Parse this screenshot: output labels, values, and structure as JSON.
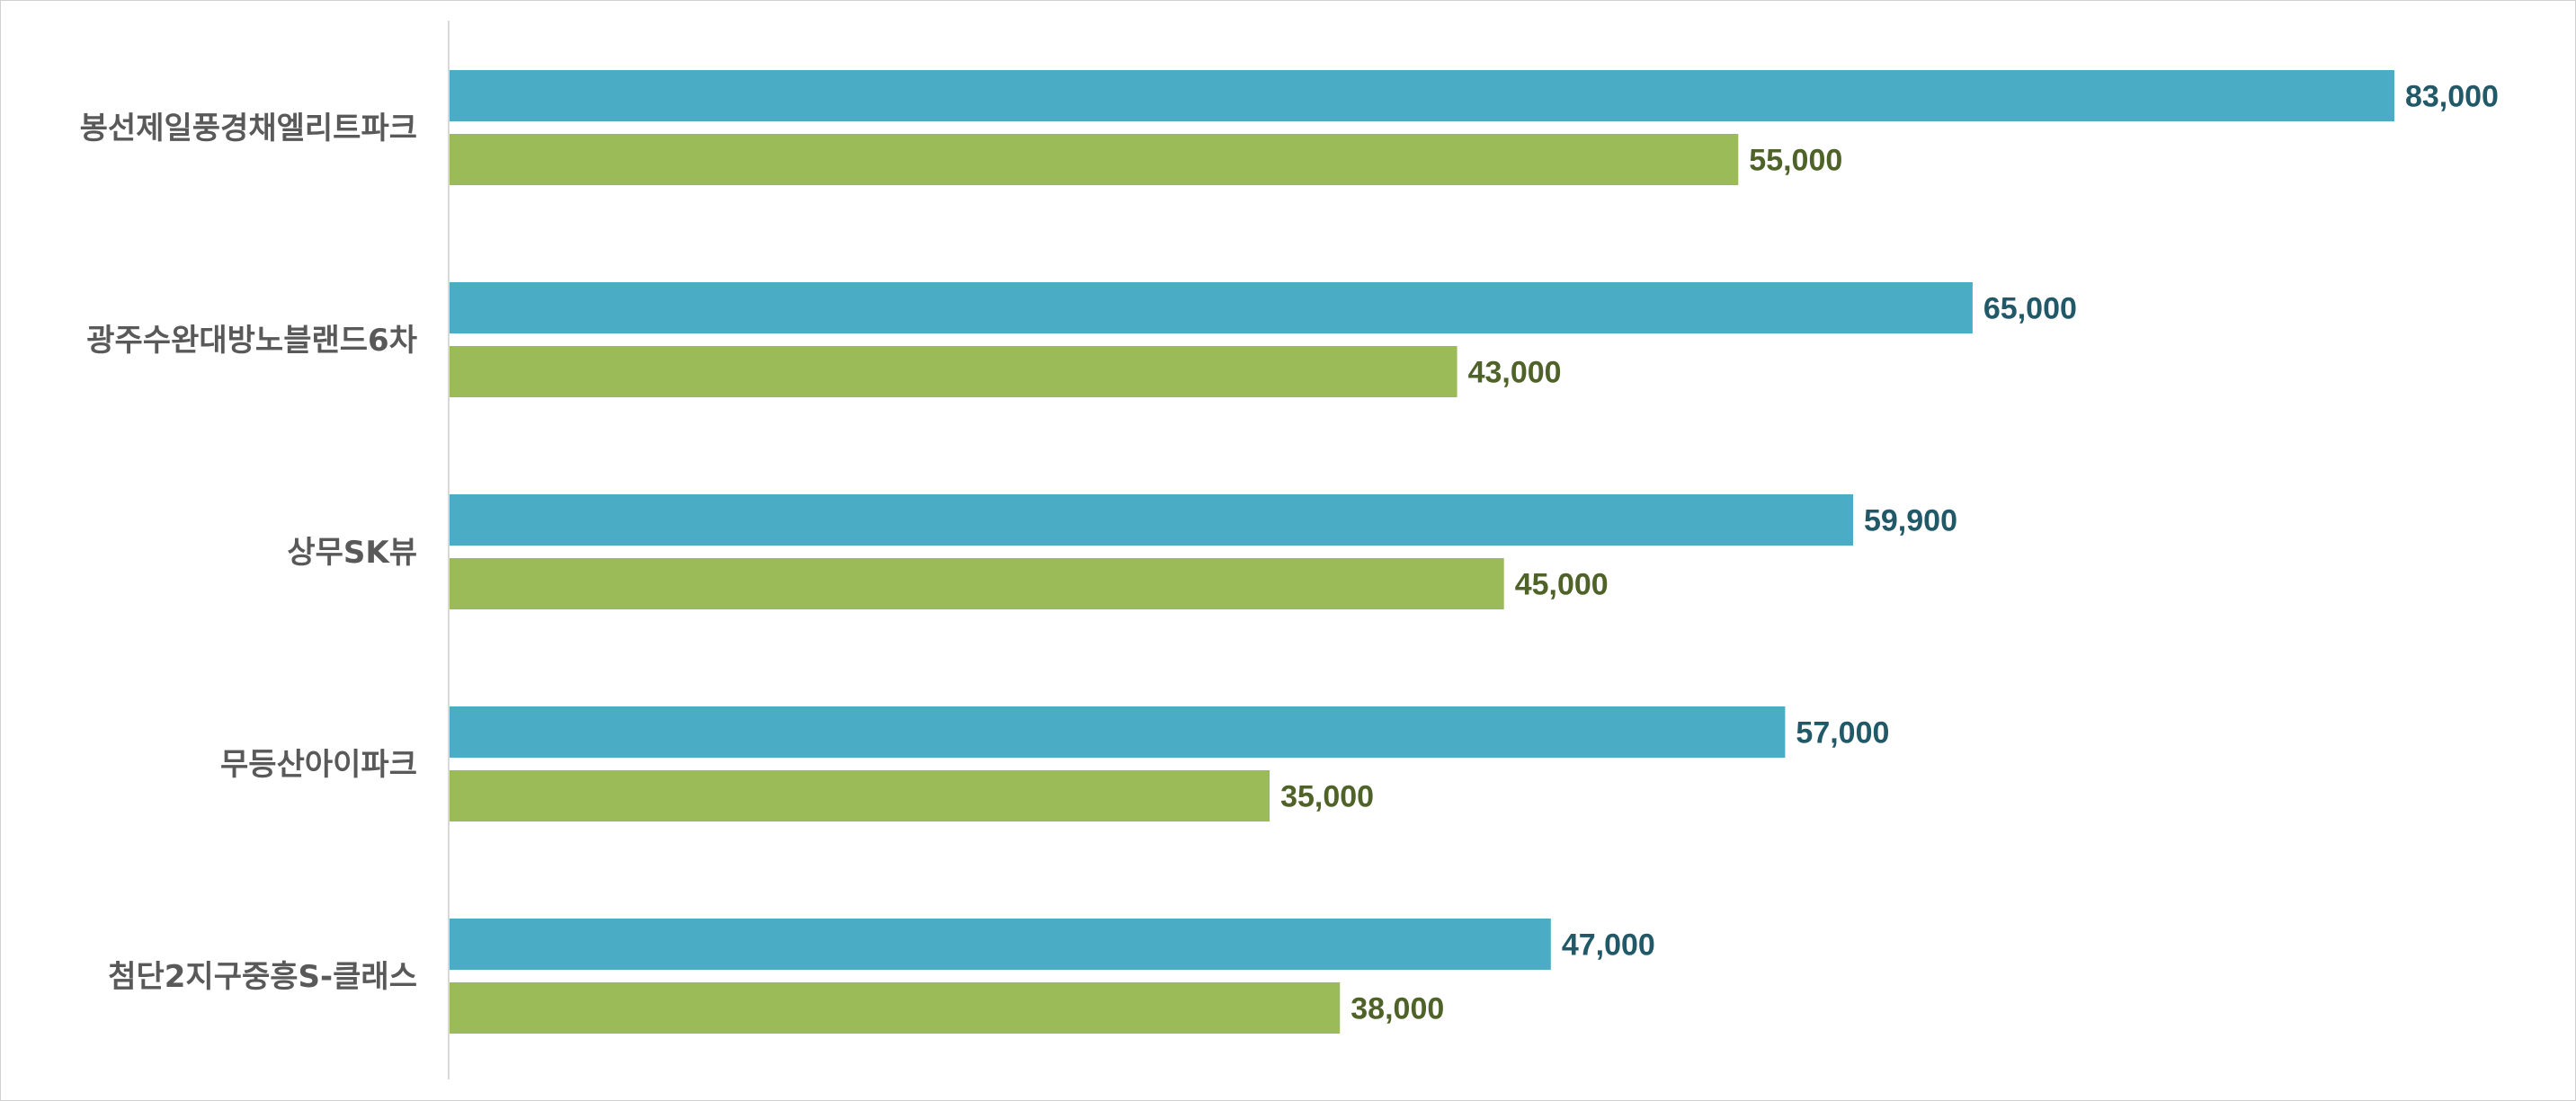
{
  "colors": {
    "series1_bar": "#4BACC6",
    "series2_bar": "#9BBB59",
    "series1_label": "#215968",
    "series2_label": "#4F6228",
    "axis": "#d9d9d9",
    "category_text": "#595959"
  },
  "chart_data": {
    "type": "bar",
    "orientation": "horizontal",
    "categories": [
      "봉선제일풍경채엘리트파크",
      "광주수완대방노블랜드6차",
      "상무SK뷰",
      "무등산아이파크",
      "첨단2지구중흥S-클래스"
    ],
    "series": [
      {
        "values": [
          83000,
          65000,
          59900,
          57000,
          47000
        ],
        "labels": [
          "83,000",
          "65,000",
          "59,900",
          "57,000",
          "47,000"
        ]
      },
      {
        "values": [
          55000,
          43000,
          45000,
          35000,
          38000
        ],
        "labels": [
          "55,000",
          "43,000",
          "45,000",
          "35,000",
          "38,000"
        ]
      }
    ],
    "xlim": [
      0,
      90000
    ],
    "grid": false,
    "legend": "none",
    "data_labels": true,
    "title": "",
    "xlabel": "",
    "ylabel": ""
  }
}
